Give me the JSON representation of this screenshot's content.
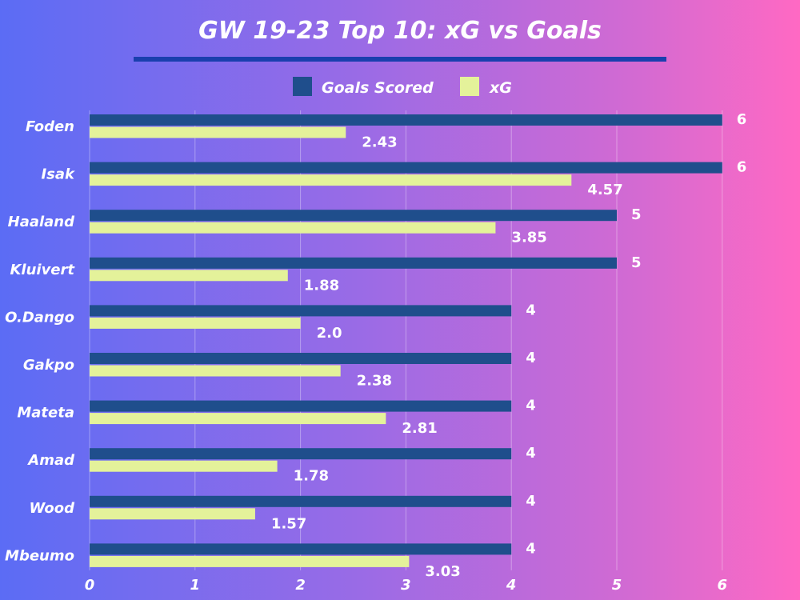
{
  "chart_data": {
    "type": "bar",
    "orientation": "horizontal",
    "title": "GW 19-23 Top 10: xG vs Goals",
    "xlabel": "",
    "ylabel": "",
    "xlim": [
      0,
      6.6
    ],
    "ticks": [
      "0",
      "1",
      "2",
      "3",
      "4",
      "5",
      "6"
    ],
    "grid": true,
    "legend_position": "top-center",
    "categories": [
      "Foden",
      "Isak",
      "Haaland",
      "Kluivert",
      "O.Dango",
      "Gakpo",
      "Mateta",
      "Amad",
      "Wood",
      "Mbeumo"
    ],
    "series": [
      {
        "name": "Goals Scored",
        "color": "#1f4e8c",
        "values": [
          6,
          6,
          5,
          5,
          4,
          4,
          4,
          4,
          4,
          4
        ],
        "labels": [
          "6",
          "6",
          "5",
          "5",
          "4",
          "4",
          "4",
          "4",
          "4",
          "4"
        ]
      },
      {
        "name": "xG",
        "color": "#e4f29a",
        "values": [
          2.43,
          4.57,
          3.85,
          1.88,
          2.0,
          2.38,
          2.81,
          1.78,
          1.57,
          3.03
        ],
        "labels": [
          "2.43",
          "4.57",
          "3.85",
          "1.88",
          "2.0",
          "2.38",
          "2.81",
          "1.78",
          "1.57",
          "3.03"
        ]
      }
    ],
    "colors": {
      "divider": "#1a3fae",
      "gridline": "#ffffff"
    }
  }
}
